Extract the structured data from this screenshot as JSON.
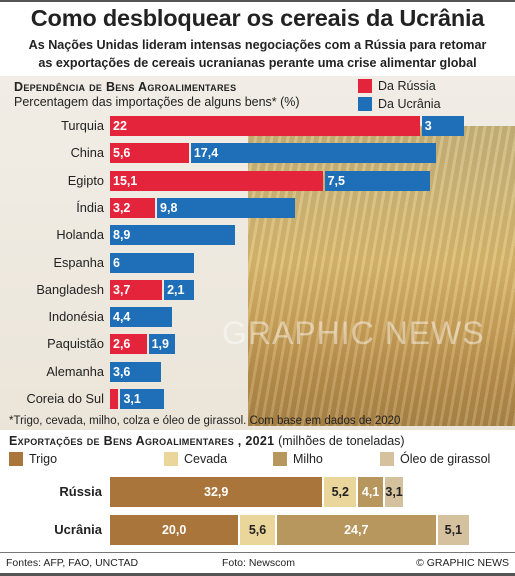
{
  "title": "Como desbloquear os cereais da Ucrânia",
  "subtitle_line1": "As Nações Unidas lideram intensas negociações com a Rússia para retomar",
  "subtitle_line2": "as exportações de cereais ucranianas perante uma crise alimentar global",
  "watermark": "GRAPHIC NEWS",
  "colors": {
    "russia": "#e3243b",
    "ukraine": "#1e6fb8",
    "trigo": "#a9753a",
    "cevada": "#ead59b",
    "milho": "#b8975e",
    "oleo": "#d5c19e"
  },
  "chart_data": [
    {
      "type": "bar",
      "title": "Dependência de Bens Agroalimentares",
      "subtitle": "Percentagem das importações de alguns bens* (%)",
      "categories": [
        "Turquia",
        "China",
        "Egipto",
        "Índia",
        "Holanda",
        "Espanha",
        "Bangladesh",
        "Indonésia",
        "Paquistão",
        "Alemanha",
        "Coreia do Sul"
      ],
      "series": [
        {
          "name": "Da Rússia",
          "values": [
            22,
            5.6,
            15.1,
            3.2,
            null,
            null,
            3.7,
            null,
            2.6,
            null,
            0.6
          ],
          "labels": [
            "22",
            "5,6",
            "15,1",
            "3,2",
            "",
            "",
            "3,7",
            "",
            "2,6",
            "",
            ""
          ]
        },
        {
          "name": "Da Ucrânia",
          "values": [
            3,
            17.4,
            7.5,
            9.8,
            8.9,
            6,
            2.1,
            4.4,
            1.9,
            3.6,
            3.1
          ],
          "labels": [
            "3",
            "17,4",
            "7,5",
            "9,8",
            "8,9",
            "6",
            "2,1",
            "4,4",
            "1,9",
            "3,6",
            "3,1"
          ]
        }
      ],
      "footnote": "*Trigo, cevada, milho, colza e óleo de girassol. Com base em dados de 2020"
    },
    {
      "type": "bar",
      "stacked": true,
      "title": "Exportações de Bens Agroalimentares , 2021",
      "unit_label": "(milhões de toneladas)",
      "categories": [
        "Rússia",
        "Ucrânia"
      ],
      "series": [
        {
          "name": "Trigo",
          "values": [
            32.9,
            20.0
          ],
          "labels": [
            "32,9",
            "20,0"
          ]
        },
        {
          "name": "Cevada",
          "values": [
            5.2,
            5.6
          ],
          "labels": [
            "5,2",
            "5,6"
          ]
        },
        {
          "name": "Milho",
          "values": [
            4.1,
            24.7
          ],
          "labels": [
            "4,1",
            "24,7"
          ]
        },
        {
          "name": "Óleo de girassol",
          "values": [
            3.1,
            5.1
          ],
          "labels": [
            "3,1",
            "5,1"
          ]
        }
      ]
    }
  ],
  "footer": {
    "sources": "Fontes: AFP, FAO, UNCTAD",
    "photo": "Foto: Newscom",
    "copyright": "© GRAPHIC NEWS"
  }
}
